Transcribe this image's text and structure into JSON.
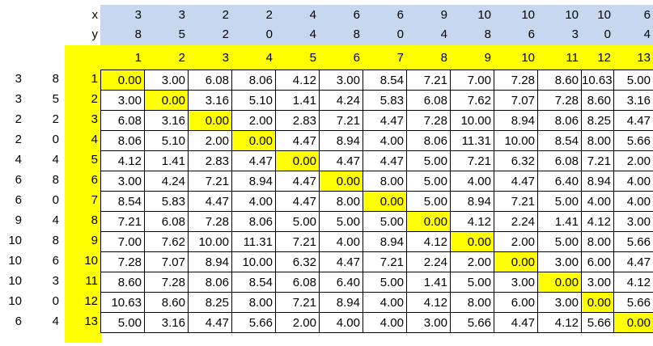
{
  "header": {
    "x_label": "x",
    "y_label": "y",
    "x_values": [
      "3",
      "3",
      "2",
      "2",
      "4",
      "6",
      "6",
      "9",
      "10",
      "10",
      "10",
      "10",
      "6"
    ],
    "y_values": [
      "8",
      "5",
      "2",
      "0",
      "4",
      "8",
      "0",
      "4",
      "8",
      "6",
      "3",
      "0",
      "4"
    ],
    "col_indices": [
      "1",
      "2",
      "3",
      "4",
      "5",
      "6",
      "7",
      "8",
      "9",
      "10",
      "11",
      "12",
      "13"
    ]
  },
  "rows": [
    {
      "x": "3",
      "y": "8",
      "index": "1",
      "values": [
        "0.00",
        "3.00",
        "6.08",
        "8.06",
        "4.12",
        "3.00",
        "8.54",
        "7.21",
        "7.00",
        "7.28",
        "8.60",
        "10.63",
        "5.00"
      ]
    },
    {
      "x": "3",
      "y": "5",
      "index": "2",
      "values": [
        "3.00",
        "0.00",
        "3.16",
        "5.10",
        "1.41",
        "4.24",
        "5.83",
        "6.08",
        "7.62",
        "7.07",
        "7.28",
        "8.60",
        "3.16"
      ]
    },
    {
      "x": "2",
      "y": "2",
      "index": "3",
      "values": [
        "6.08",
        "3.16",
        "0.00",
        "2.00",
        "2.83",
        "7.21",
        "4.47",
        "7.28",
        "10.00",
        "8.94",
        "8.06",
        "8.25",
        "4.47"
      ]
    },
    {
      "x": "2",
      "y": "0",
      "index": "4",
      "values": [
        "8.06",
        "5.10",
        "2.00",
        "0.00",
        "4.47",
        "8.94",
        "4.00",
        "8.06",
        "11.31",
        "10.00",
        "8.54",
        "8.00",
        "5.66"
      ]
    },
    {
      "x": "4",
      "y": "4",
      "index": "5",
      "values": [
        "4.12",
        "1.41",
        "2.83",
        "4.47",
        "0.00",
        "4.47",
        "4.47",
        "5.00",
        "7.21",
        "6.32",
        "6.08",
        "7.21",
        "2.00"
      ]
    },
    {
      "x": "6",
      "y": "8",
      "index": "6",
      "values": [
        "3.00",
        "4.24",
        "7.21",
        "8.94",
        "4.47",
        "0.00",
        "8.00",
        "5.00",
        "4.00",
        "4.47",
        "6.40",
        "8.94",
        "4.00"
      ]
    },
    {
      "x": "6",
      "y": "0",
      "index": "7",
      "values": [
        "8.54",
        "5.83",
        "4.47",
        "4.00",
        "4.47",
        "8.00",
        "0.00",
        "5.00",
        "8.94",
        "7.21",
        "5.00",
        "4.00",
        "4.00"
      ]
    },
    {
      "x": "9",
      "y": "4",
      "index": "8",
      "values": [
        "7.21",
        "6.08",
        "7.28",
        "8.06",
        "5.00",
        "5.00",
        "5.00",
        "0.00",
        "4.12",
        "2.24",
        "1.41",
        "4.12",
        "3.00"
      ]
    },
    {
      "x": "10",
      "y": "8",
      "index": "9",
      "values": [
        "7.00",
        "7.62",
        "10.00",
        "11.31",
        "7.21",
        "4.00",
        "8.94",
        "4.12",
        "0.00",
        "2.00",
        "5.00",
        "8.00",
        "5.66"
      ]
    },
    {
      "x": "10",
      "y": "6",
      "index": "10",
      "values": [
        "7.28",
        "7.07",
        "8.94",
        "10.00",
        "6.32",
        "4.47",
        "7.21",
        "2.24",
        "2.00",
        "0.00",
        "3.00",
        "6.00",
        "4.47"
      ]
    },
    {
      "x": "10",
      "y": "3",
      "index": "11",
      "values": [
        "8.60",
        "7.28",
        "8.06",
        "8.54",
        "6.08",
        "6.40",
        "5.00",
        "1.41",
        "5.00",
        "3.00",
        "0.00",
        "3.00",
        "4.12"
      ]
    },
    {
      "x": "10",
      "y": "0",
      "index": "12",
      "values": [
        "10.63",
        "8.60",
        "8.25",
        "8.00",
        "7.21",
        "8.94",
        "4.00",
        "4.12",
        "8.00",
        "6.00",
        "3.00",
        "0.00",
        "5.66"
      ]
    },
    {
      "x": "6",
      "y": "4",
      "index": "13",
      "values": [
        "5.00",
        "3.16",
        "4.47",
        "5.66",
        "2.00",
        "4.00",
        "4.00",
        "3.00",
        "5.66",
        "4.47",
        "4.12",
        "5.66",
        "0.00"
      ]
    }
  ],
  "colors": {
    "header_blue": "#c6d7ef",
    "highlight_yellow": "#ffff00",
    "grid_line": "#000000"
  }
}
